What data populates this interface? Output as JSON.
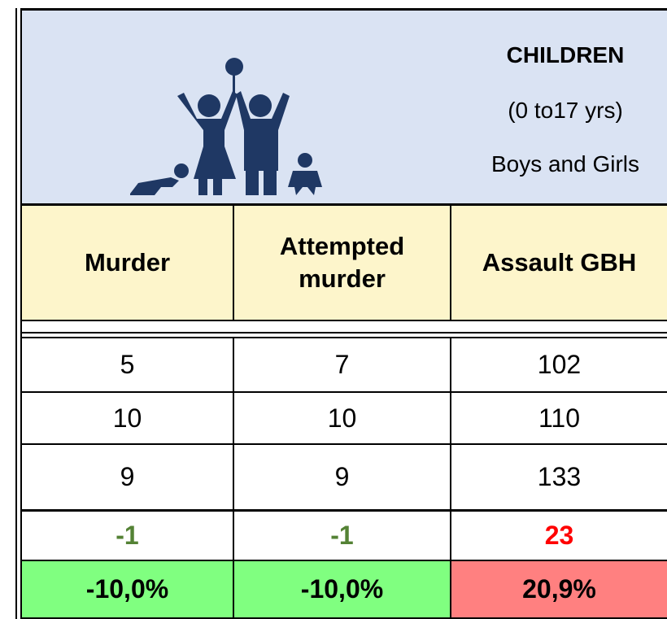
{
  "header": {
    "title": "CHILDREN",
    "age_range": "(0 to17 yrs)",
    "group": "Boys and Girls"
  },
  "table": {
    "columns": [
      "Murder",
      "Attempted murder",
      "Assault GBH"
    ],
    "rows": [
      [
        "5",
        "7",
        "102"
      ],
      [
        "10",
        "10",
        "110"
      ],
      [
        "9",
        "9",
        "133"
      ],
      [
        "-1",
        "-1",
        "23"
      ],
      [
        "-10,0%",
        "-10,0%",
        "20,9%"
      ]
    ]
  }
}
